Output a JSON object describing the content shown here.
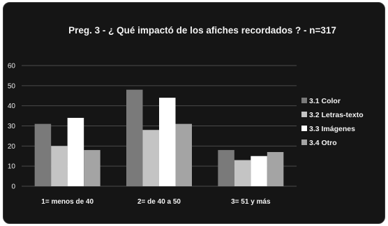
{
  "chart_data": {
    "type": "bar",
    "title": "Preg. 3 - ¿ Qué impactó de los afiches recordados ? - n=317",
    "xlabel": "",
    "ylabel": "",
    "categories": [
      "1= menos de 40",
      "2= de 40 a 50",
      "3= 51 y más"
    ],
    "ylim": [
      0,
      60
    ],
    "yticks": [
      0,
      10,
      20,
      30,
      40,
      50,
      60
    ],
    "grid": true,
    "legend_position": "right",
    "series": [
      {
        "name": "3.1  Color",
        "color": "#7a7a7a",
        "values": [
          31,
          48,
          18
        ]
      },
      {
        "name": "3.2  Letras-texto",
        "color": "#c4c4c4",
        "values": [
          20,
          28,
          13
        ]
      },
      {
        "name": "3.3  Imágenes",
        "color": "#ffffff",
        "values": [
          34,
          44,
          15
        ]
      },
      {
        "name": "3.4  Otro",
        "color": "#a4a4a4",
        "values": [
          18,
          31,
          17
        ]
      }
    ]
  }
}
